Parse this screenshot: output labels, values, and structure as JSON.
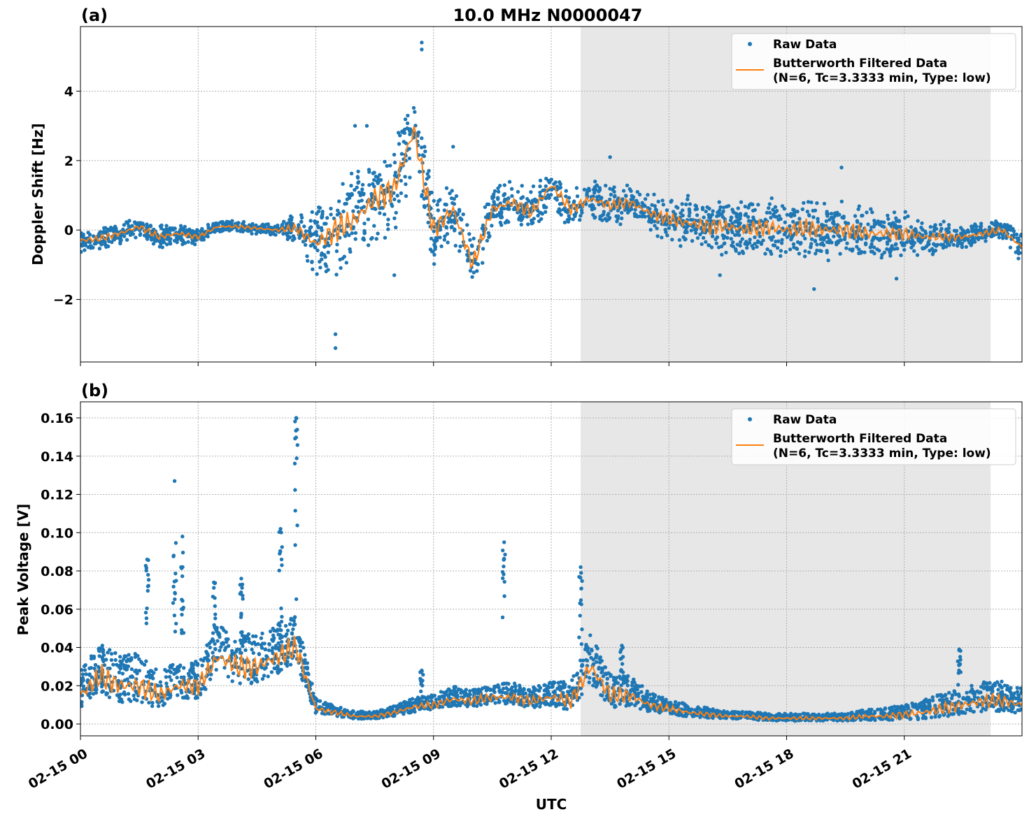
{
  "chart_data": [
    {
      "type": "scatter",
      "panel_label": "(a)",
      "title": "10.0 MHz N0000047",
      "xlabel": "",
      "ylabel": "Doppler Shift [Hz]",
      "xlim_hours": [
        0,
        24
      ],
      "ylim": [
        -3.8,
        5.86
      ],
      "yticks": [
        -2,
        0,
        2,
        4
      ],
      "ytick_labels": [
        "−2",
        "0",
        "2",
        "4"
      ],
      "grid": true,
      "legend_position": "top-right",
      "legend": [
        "Raw Data",
        "Butterworth Filtered Data",
        "(N=6, Tc=3.3333 min, Type: low)"
      ],
      "shaded_region_hours": [
        12.75,
        23.2
      ],
      "x_hours": [
        0,
        0.5,
        1,
        1.5,
        2,
        2.5,
        3,
        3.5,
        4,
        4.5,
        5,
        5.5,
        6,
        6.5,
        7,
        7.5,
        8,
        8.5,
        9,
        9.5,
        10,
        10.5,
        11,
        11.5,
        12,
        12.5,
        13,
        13.5,
        14,
        14.5,
        15,
        15.5,
        16,
        16.5,
        17,
        17.5,
        18,
        18.5,
        19,
        19.5,
        20,
        20.5,
        21,
        21.5,
        22,
        22.5,
        23,
        23.5,
        24
      ],
      "series": [
        {
          "name": "Butterworth Filtered Data",
          "color": "#ff7f0e",
          "values": [
            -0.3,
            -0.25,
            -0.1,
            0.1,
            -0.2,
            -0.1,
            -0.2,
            0.1,
            0.1,
            0.05,
            0.0,
            0.05,
            -0.4,
            0.0,
            0.3,
            0.9,
            1.2,
            2.9,
            0.0,
            0.6,
            -1.0,
            0.6,
            0.8,
            0.5,
            1.3,
            0.6,
            0.9,
            0.7,
            0.8,
            0.5,
            0.3,
            0.2,
            0.1,
            0.1,
            0.0,
            0.1,
            0.0,
            0.05,
            0.0,
            0.0,
            -0.1,
            -0.1,
            -0.1,
            -0.2,
            -0.2,
            -0.2,
            -0.1,
            0.0,
            -0.5
          ]
        },
        {
          "name": "Raw Data",
          "color": "#1f77b4",
          "spread": [
            0.3,
            0.3,
            0.3,
            0.3,
            0.3,
            0.3,
            0.2,
            0.15,
            0.15,
            0.15,
            0.2,
            0.4,
            0.9,
            1.2,
            1.2,
            1.2,
            1.2,
            1.4,
            1.0,
            0.8,
            0.8,
            0.6,
            0.6,
            0.6,
            0.6,
            0.5,
            0.5,
            0.5,
            0.5,
            0.5,
            0.6,
            0.7,
            0.7,
            0.7,
            0.7,
            0.8,
            0.8,
            0.8,
            0.8,
            0.7,
            0.7,
            0.6,
            0.6,
            0.5,
            0.4,
            0.3,
            0.3,
            0.3,
            0.4
          ],
          "outliers": [
            [
              6.5,
              -3.4
            ],
            [
              6.5,
              -3.0
            ],
            [
              8.7,
              5.4
            ],
            [
              8.7,
              5.2
            ],
            [
              7.0,
              3.0
            ],
            [
              7.3,
              3.0
            ],
            [
              9.5,
              2.4
            ],
            [
              13.5,
              2.1
            ],
            [
              19.4,
              1.8
            ],
            [
              18.7,
              -1.7
            ],
            [
              8.0,
              -1.3
            ],
            [
              16.3,
              -1.3
            ],
            [
              20.8,
              -1.4
            ]
          ]
        }
      ]
    },
    {
      "type": "scatter",
      "panel_label": "(b)",
      "xlabel": "UTC",
      "ylabel": "Peak Voltage [V]",
      "xlim_hours": [
        0,
        24
      ],
      "ylim": [
        -0.0062,
        0.1684
      ],
      "yticks": [
        0,
        0.02,
        0.04,
        0.06,
        0.08,
        0.1,
        0.12,
        0.14,
        0.16
      ],
      "ytick_labels": [
        "0.00",
        "0.02",
        "0.04",
        "0.06",
        "0.08",
        "0.10",
        "0.12",
        "0.14",
        "0.16"
      ],
      "xtick_hours": [
        0,
        3,
        6,
        9,
        12,
        15,
        18,
        21
      ],
      "xtick_labels": [
        "02-15 00",
        "02-15 03",
        "02-15 06",
        "02-15 09",
        "02-15 12",
        "02-15 15",
        "02-15 18",
        "02-15 21"
      ],
      "grid": true,
      "legend_position": "top-right",
      "legend": [
        "Raw Data",
        "Butterworth Filtered Data",
        "(N=6, Tc=3.3333 min, Type: low)"
      ],
      "shaded_region_hours": [
        12.75,
        23.2
      ],
      "x_hours": [
        0,
        0.5,
        1,
        1.5,
        2,
        2.5,
        3,
        3.5,
        4,
        4.5,
        5,
        5.5,
        6,
        6.5,
        7,
        7.5,
        8,
        8.5,
        9,
        9.5,
        10,
        10.5,
        11,
        11.5,
        12,
        12.5,
        13,
        13.5,
        14,
        14.5,
        15,
        15.5,
        16,
        16.5,
        17,
        17.5,
        18,
        18.5,
        19,
        19.5,
        20,
        20.5,
        21,
        21.5,
        22,
        22.5,
        23,
        23.5,
        24
      ],
      "series": [
        {
          "name": "Butterworth Filtered Data",
          "color": "#ff7f0e",
          "values": [
            0.015,
            0.025,
            0.02,
            0.02,
            0.015,
            0.02,
            0.02,
            0.035,
            0.03,
            0.03,
            0.035,
            0.04,
            0.008,
            0.006,
            0.004,
            0.004,
            0.006,
            0.009,
            0.01,
            0.013,
            0.012,
            0.014,
            0.014,
            0.012,
            0.014,
            0.012,
            0.03,
            0.015,
            0.015,
            0.01,
            0.008,
            0.006,
            0.005,
            0.004,
            0.004,
            0.003,
            0.003,
            0.003,
            0.003,
            0.003,
            0.004,
            0.004,
            0.005,
            0.006,
            0.008,
            0.01,
            0.012,
            0.012,
            0.01
          ]
        },
        {
          "name": "Raw Data",
          "color": "#1f77b4",
          "spread": [
            0.015,
            0.02,
            0.02,
            0.02,
            0.015,
            0.015,
            0.015,
            0.02,
            0.02,
            0.02,
            0.02,
            0.02,
            0.006,
            0.004,
            0.003,
            0.003,
            0.004,
            0.006,
            0.006,
            0.008,
            0.007,
            0.008,
            0.009,
            0.008,
            0.01,
            0.012,
            0.02,
            0.015,
            0.012,
            0.008,
            0.006,
            0.005,
            0.004,
            0.003,
            0.003,
            0.003,
            0.003,
            0.003,
            0.003,
            0.003,
            0.004,
            0.005,
            0.006,
            0.008,
            0.01,
            0.01,
            0.012,
            0.012,
            0.01
          ],
          "spikes": [
            [
              1.7,
              0.086
            ],
            [
              2.4,
              0.127
            ],
            [
              2.6,
              0.098
            ],
            [
              3.4,
              0.074
            ],
            [
              4.1,
              0.076
            ],
            [
              5.1,
              0.102
            ],
            [
              5.5,
              0.16
            ],
            [
              8.7,
              0.028
            ],
            [
              10.8,
              0.095
            ],
            [
              12.75,
              0.082
            ],
            [
              13.8,
              0.041
            ],
            [
              22.4,
              0.039
            ]
          ]
        }
      ]
    }
  ]
}
